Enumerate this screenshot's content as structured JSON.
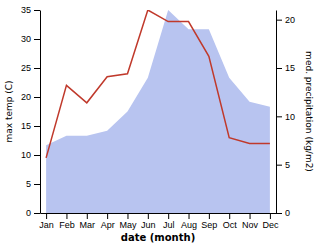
{
  "chart_data": {
    "type": "line",
    "categories": [
      "Jan",
      "Feb",
      "Mar",
      "Apr",
      "May",
      "Jun",
      "Jul",
      "Aug",
      "Sep",
      "Oct",
      "Nov",
      "Dec"
    ],
    "series": [
      {
        "type": "area",
        "axis": "y2",
        "color": "#b8c4f0",
        "values": [
          7.0,
          8.0,
          8.0,
          8.5,
          10.5,
          14.0,
          21.0,
          19.0,
          19.0,
          14.0,
          11.5,
          11.0
        ]
      },
      {
        "type": "line",
        "color": "#c0392b",
        "values": [
          9.5,
          22.0,
          19.0,
          23.5,
          24.0,
          35.0,
          33.0,
          33.0,
          27.0,
          13.0,
          12.0,
          12.0
        ]
      }
    ],
    "xlabel": "date (month)",
    "ylabel": "max temp (C)",
    "y2label": "med. precipitation (kg/m2)",
    "ylim": [
      0,
      35
    ],
    "yticks": [
      0,
      5,
      10,
      15,
      20,
      25,
      30,
      35
    ],
    "y2lim": [
      0,
      21
    ],
    "y2ticks": [
      0,
      5,
      10,
      15,
      20
    ]
  }
}
